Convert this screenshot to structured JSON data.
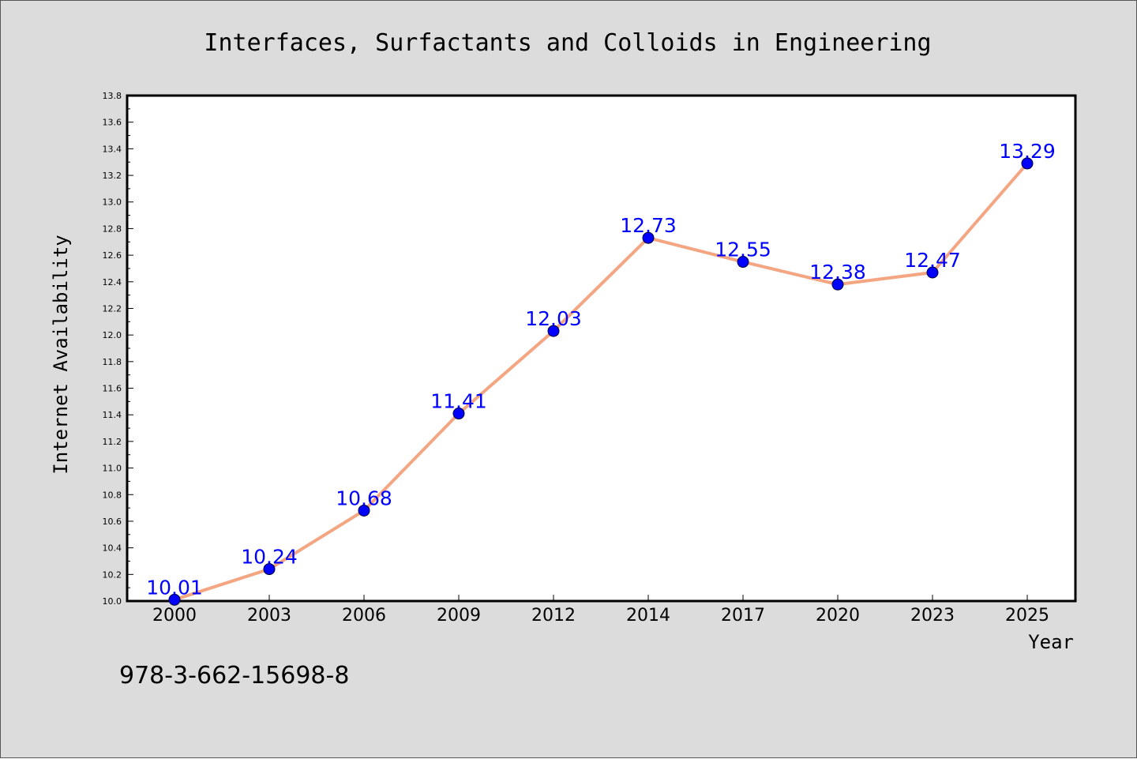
{
  "figure": {
    "footer_text": "978-3-662-15698-8"
  },
  "colors": {
    "background": "#dcdcdc",
    "plot_background": "#ffffff",
    "line": "#f4a582",
    "marker": "#0000ff",
    "data_label": "#0000ff",
    "axis": "#000000"
  },
  "chart_data": {
    "type": "line",
    "title": "Interfaces, Surfactants and Colloids in Engineering",
    "xlabel": "Year",
    "ylabel": "Internet Availability",
    "categories": [
      "2000",
      "2003",
      "2006",
      "2009",
      "2012",
      "2014",
      "2017",
      "2020",
      "2023",
      "2025"
    ],
    "series": [
      {
        "values": [
          10.01,
          10.24,
          10.68,
          11.41,
          12.03,
          12.73,
          12.55,
          12.38,
          12.47,
          13.29
        ],
        "labels": [
          "10.01",
          "10.24",
          "10.68",
          "11.41",
          "12.03",
          "12.73",
          "12.55",
          "12.38",
          "12.47",
          "13.29"
        ],
        "marker": "circle"
      }
    ],
    "ylim": [
      10.0,
      13.8
    ],
    "yticks": [
      "10.0",
      "10.2",
      "10.4",
      "10.6",
      "10.8",
      "11.0",
      "11.2",
      "11.4",
      "11.6",
      "11.8",
      "12.0",
      "12.2",
      "12.4",
      "12.6",
      "12.8",
      "13.0",
      "13.2",
      "13.4",
      "13.6",
      "13.8"
    ],
    "grid": false,
    "legend": "none"
  }
}
